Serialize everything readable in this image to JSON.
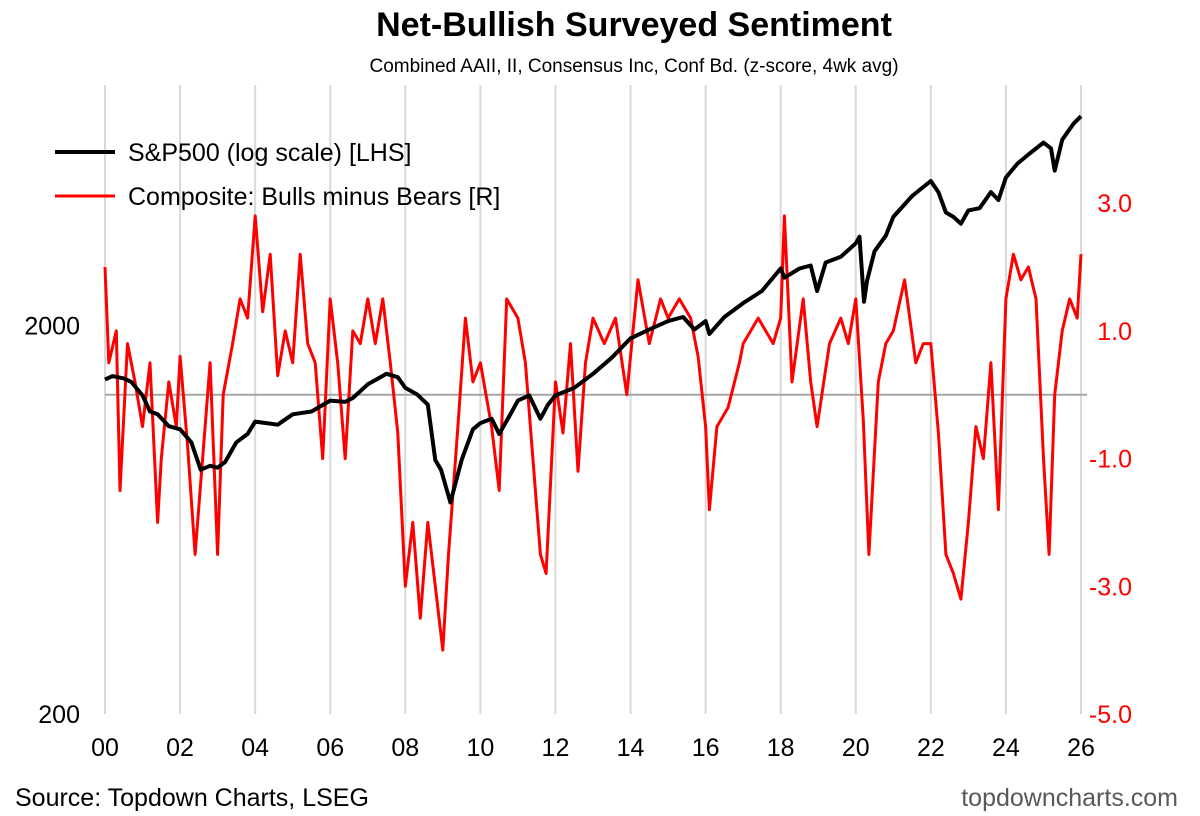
{
  "colors": {
    "sp500": "#000000",
    "composite": "#ff0000",
    "zero_line": "#a6a6a6",
    "gridlines": "#d9d9d9",
    "right_axis_text": "#ff0000",
    "brand_text": "#595959"
  },
  "source": "Source: Topdown Charts, LSEG",
  "brand": "topdowncharts.com",
  "chart_data": {
    "type": "line",
    "title": "Net-Bullish Surveyed Sentiment",
    "subtitle": "Combined AAII, II, Consensus Inc, Conf Bd. (z-score, 4wk avg)",
    "legend_position": "top-left",
    "grid": {
      "vertical": true,
      "horizontal": false
    },
    "x_axis": {
      "range": [
        2000.0,
        2026.0
      ],
      "ticks": [
        2000,
        2002,
        2004,
        2006,
        2008,
        2010,
        2012,
        2014,
        2016,
        2018,
        2020,
        2022,
        2024,
        2026
      ],
      "tick_labels": [
        "00",
        "02",
        "04",
        "06",
        "08",
        "10",
        "12",
        "14",
        "16",
        "18",
        "20",
        "22",
        "24",
        "26"
      ]
    },
    "y_left": {
      "scale": "log",
      "range": [
        200,
        8300
      ],
      "ticks": [
        200,
        2000
      ],
      "tick_labels": [
        "200",
        "2000"
      ]
    },
    "y_right": {
      "scale": "linear",
      "range": [
        -5.0,
        4.85
      ],
      "ticks": [
        -5,
        -3,
        -1,
        1,
        3
      ],
      "tick_labels": [
        "-5.0",
        "-3.0",
        "-1.0",
        "1.0",
        "3.0"
      ],
      "reference_line": 0
    },
    "series": [
      {
        "name": "S&P500 (log scale) [LHS]",
        "axis": "left",
        "x": [
          2000.0,
          2000.2,
          2000.5,
          2000.7,
          2001.0,
          2001.2,
          2001.4,
          2001.7,
          2002.0,
          2002.3,
          2002.55,
          2002.8,
          2003.0,
          2003.2,
          2003.5,
          2003.8,
          2004.0,
          2004.3,
          2004.6,
          2005.0,
          2005.5,
          2006.0,
          2006.4,
          2006.6,
          2007.0,
          2007.5,
          2007.8,
          2008.0,
          2008.3,
          2008.6,
          2008.8,
          2008.95,
          2009.2,
          2009.5,
          2009.8,
          2010.0,
          2010.3,
          2010.5,
          2010.8,
          2011.0,
          2011.3,
          2011.6,
          2011.8,
          2012.0,
          2012.5,
          2013.0,
          2013.5,
          2014.0,
          2014.5,
          2015.0,
          2015.4,
          2015.7,
          2016.0,
          2016.1,
          2016.5,
          2017.0,
          2017.5,
          2018.0,
          2018.1,
          2018.5,
          2018.8,
          2018.97,
          2019.2,
          2019.6,
          2020.0,
          2020.1,
          2020.22,
          2020.3,
          2020.5,
          2020.8,
          2021.0,
          2021.5,
          2022.0,
          2022.2,
          2022.4,
          2022.6,
          2022.8,
          2023.0,
          2023.3,
          2023.6,
          2023.8,
          2024.0,
          2024.3,
          2024.6,
          2025.0,
          2025.2,
          2025.3,
          2025.5,
          2025.8,
          2026.0
        ],
        "values": [
          1450,
          1480,
          1460,
          1430,
          1320,
          1200,
          1180,
          1100,
          1080,
          1000,
          850,
          870,
          860,
          890,
          1000,
          1050,
          1130,
          1120,
          1110,
          1180,
          1200,
          1280,
          1270,
          1300,
          1410,
          1500,
          1470,
          1380,
          1330,
          1250,
          900,
          850,
          700,
          900,
          1080,
          1120,
          1150,
          1050,
          1180,
          1280,
          1320,
          1150,
          1250,
          1320,
          1380,
          1500,
          1650,
          1850,
          1950,
          2050,
          2100,
          1950,
          2050,
          1900,
          2100,
          2280,
          2450,
          2800,
          2650,
          2800,
          2850,
          2450,
          2900,
          3000,
          3250,
          3380,
          2300,
          2600,
          3100,
          3400,
          3800,
          4300,
          4700,
          4400,
          3900,
          3800,
          3650,
          3950,
          4000,
          4400,
          4200,
          4800,
          5200,
          5500,
          5900,
          5700,
          5000,
          6000,
          6600,
          6900
        ]
      },
      {
        "name": "Composite: Bulls minus Bears [R]",
        "axis": "right",
        "x": [
          2000.0,
          2000.1,
          2000.3,
          2000.4,
          2000.6,
          2000.8,
          2001.0,
          2001.2,
          2001.4,
          2001.5,
          2001.7,
          2001.9,
          2002.0,
          2002.2,
          2002.4,
          2002.6,
          2002.8,
          2003.0,
          2003.15,
          2003.4,
          2003.6,
          2003.8,
          2004.0,
          2004.2,
          2004.4,
          2004.6,
          2004.8,
          2005.0,
          2005.2,
          2005.4,
          2005.6,
          2005.8,
          2006.0,
          2006.2,
          2006.4,
          2006.6,
          2006.8,
          2007.0,
          2007.2,
          2007.4,
          2007.6,
          2007.8,
          2008.0,
          2008.2,
          2008.4,
          2008.6,
          2008.8,
          2009.0,
          2009.15,
          2009.4,
          2009.6,
          2009.8,
          2010.0,
          2010.3,
          2010.5,
          2010.7,
          2011.0,
          2011.2,
          2011.4,
          2011.6,
          2011.75,
          2012.0,
          2012.2,
          2012.4,
          2012.6,
          2012.8,
          2013.0,
          2013.3,
          2013.6,
          2013.9,
          2014.2,
          2014.5,
          2014.8,
          2015.0,
          2015.3,
          2015.6,
          2015.8,
          2016.0,
          2016.1,
          2016.3,
          2016.6,
          2016.9,
          2017.0,
          2017.4,
          2017.8,
          2018.0,
          2018.1,
          2018.3,
          2018.6,
          2018.8,
          2018.97,
          2019.3,
          2019.6,
          2019.8,
          2020.0,
          2020.2,
          2020.35,
          2020.6,
          2020.8,
          2021.0,
          2021.3,
          2021.6,
          2021.8,
          2022.0,
          2022.2,
          2022.4,
          2022.6,
          2022.8,
          2023.0,
          2023.2,
          2023.4,
          2023.6,
          2023.8,
          2024.0,
          2024.2,
          2024.4,
          2024.6,
          2024.8,
          2025.0,
          2025.15,
          2025.3,
          2025.5,
          2025.7,
          2025.9,
          2026.0
        ],
        "values": [
          2.0,
          0.5,
          1.0,
          -1.5,
          0.8,
          0.2,
          -0.5,
          0.5,
          -2.0,
          -1.0,
          0.2,
          -0.5,
          0.6,
          -0.8,
          -2.5,
          -1.0,
          0.5,
          -2.5,
          0.0,
          0.8,
          1.5,
          1.2,
          2.8,
          1.3,
          2.2,
          0.3,
          1.0,
          0.5,
          2.2,
          0.8,
          0.5,
          -1.0,
          1.5,
          0.5,
          -1.0,
          1.0,
          0.8,
          1.5,
          0.8,
          1.5,
          0.5,
          -0.6,
          -3.0,
          -2.0,
          -3.5,
          -2.0,
          -3.0,
          -4.0,
          -2.5,
          -0.5,
          1.2,
          0.2,
          0.5,
          -0.5,
          -1.5,
          1.5,
          1.2,
          0.5,
          -1.0,
          -2.5,
          -2.8,
          0.2,
          -0.6,
          0.8,
          -1.2,
          0.5,
          1.2,
          0.8,
          1.2,
          0.0,
          1.8,
          0.8,
          1.5,
          1.2,
          1.5,
          1.2,
          0.6,
          -0.5,
          -1.8,
          -0.5,
          -0.2,
          0.5,
          0.8,
          1.2,
          0.8,
          1.2,
          2.8,
          0.2,
          1.5,
          0.2,
          -0.5,
          0.8,
          1.2,
          0.8,
          1.5,
          -0.4,
          -2.5,
          0.2,
          0.8,
          1.0,
          1.8,
          0.5,
          0.8,
          0.8,
          -0.6,
          -2.5,
          -2.8,
          -3.2,
          -2.0,
          -0.5,
          -1.0,
          0.5,
          -1.8,
          1.5,
          2.2,
          1.8,
          2.0,
          1.5,
          -1.0,
          -2.5,
          0.0,
          1.0,
          1.5,
          1.2,
          2.2
        ]
      }
    ]
  }
}
